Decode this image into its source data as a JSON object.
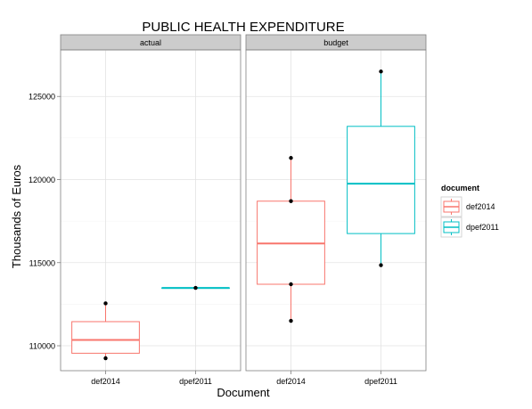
{
  "chart_data": {
    "type": "box",
    "title": "PUBLIC HEALTH EXPENDITURE",
    "xlabel": "Document",
    "ylabel": "Thousands of Euros",
    "ylim": [
      108500,
      127800
    ],
    "yticks": [
      110000,
      115000,
      120000,
      125000
    ],
    "ytick_labels": [
      "110000",
      "115000",
      "120000",
      "125000"
    ],
    "categories": [
      "def2014",
      "dpef2011"
    ],
    "legend": {
      "title": "document",
      "position": "right",
      "entries": [
        {
          "label": "def2014",
          "color": "#F8766D"
        },
        {
          "label": "dpef2011",
          "color": "#00BFC4"
        }
      ]
    },
    "grid": true,
    "panels": [
      {
        "name": "actual",
        "boxes": [
          {
            "category": "def2014",
            "color": "#F8766D",
            "whisker_low": 109250,
            "q1": 109550,
            "median": 110350,
            "q3": 111450,
            "whisker_high": 112550,
            "points": [
              109250,
              112550
            ]
          },
          {
            "category": "dpef2011",
            "color": "#00BFC4",
            "whisker_low": 113480,
            "q1": 113480,
            "median": 113480,
            "q3": 113480,
            "whisker_high": 113480,
            "points": [
              113480
            ]
          }
        ]
      },
      {
        "name": "budget",
        "boxes": [
          {
            "category": "def2014",
            "color": "#F8766D",
            "whisker_low": 111500,
            "q1": 113700,
            "median": 116150,
            "q3": 118700,
            "whisker_high": 121300,
            "points": [
              111500,
              113700,
              118700,
              121300
            ]
          },
          {
            "category": "dpef2011",
            "color": "#00BFC4",
            "whisker_low": 114850,
            "q1": 116750,
            "median": 119750,
            "q3": 123200,
            "whisker_high": 126500,
            "points": [
              114850,
              126500
            ]
          }
        ]
      }
    ]
  }
}
